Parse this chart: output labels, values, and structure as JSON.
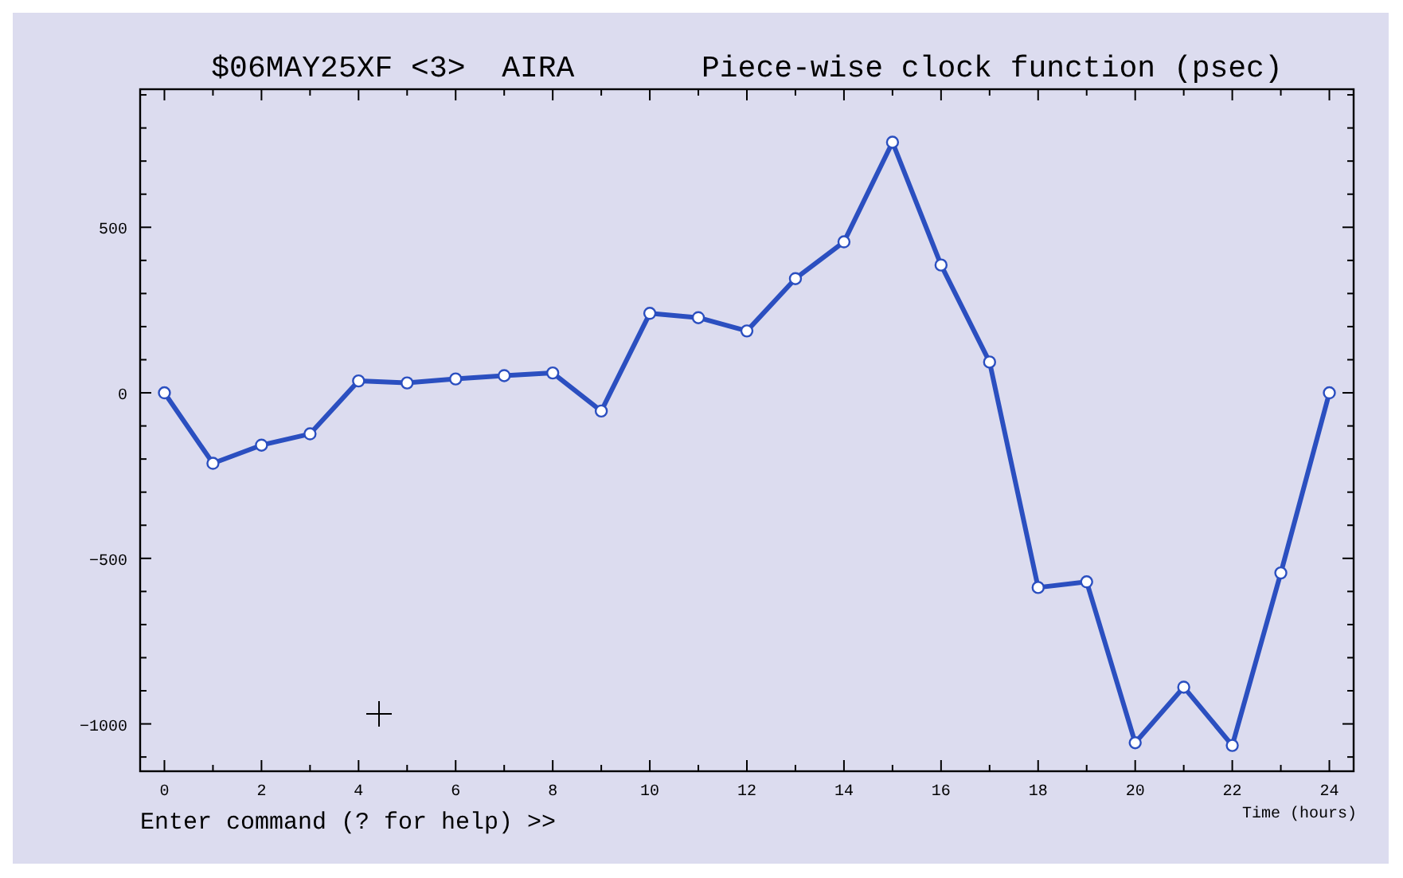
{
  "chart_data": {
    "type": "line",
    "title": "$06MAY25XF <3>  AIRA       Piece-wise clock function (psec)",
    "xlabel": "Time (hours)",
    "annotations": [
      "Enter command (? for help) >>"
    ],
    "x": [
      0,
      1,
      2,
      3,
      4,
      5,
      6,
      7,
      8,
      9,
      10,
      11,
      12,
      13,
      14,
      15,
      16,
      17,
      18,
      19,
      20,
      21,
      22,
      23,
      24
    ],
    "series": [
      {
        "color": "#2b4fc0",
        "values": [
          0,
          -213,
          -158,
          -124,
          36,
          30,
          42,
          52,
          60,
          -55,
          240,
          227,
          187,
          345,
          456,
          757,
          386,
          93,
          -588,
          -571,
          -1057,
          -889,
          -1065,
          -544,
          0
        ]
      }
    ],
    "xlim": [
      -0.5,
      24.5
    ],
    "ylim": [
      -1143,
      917
    ],
    "xticks": [
      0,
      {
        "value": 1,
        "label": null
      },
      2,
      {
        "value": 3,
        "label": null
      },
      4,
      {
        "value": 5,
        "label": null
      },
      6,
      {
        "value": 7,
        "label": null
      },
      8,
      {
        "value": 9,
        "label": null
      },
      10,
      {
        "value": 11,
        "label": null
      },
      12,
      {
        "value": 13,
        "label": null
      },
      14,
      {
        "value": 15,
        "label": null
      },
      16,
      {
        "value": 17,
        "label": null
      },
      18,
      {
        "value": 19,
        "label": null
      },
      20,
      {
        "value": 21,
        "label": null
      },
      22,
      {
        "value": 23,
        "label": null
      },
      24
    ],
    "yticks": [
      {
        "value": -1100,
        "label": null
      },
      {
        "value": -1000,
        "label": "−1000"
      },
      {
        "value": -900,
        "label": null
      },
      {
        "value": -800,
        "label": null
      },
      {
        "value": -700,
        "label": null
      },
      {
        "value": -600,
        "label": null
      },
      {
        "value": -500,
        "label": "−500"
      },
      {
        "value": -400,
        "label": null
      },
      {
        "value": -300,
        "label": null
      },
      {
        "value": -200,
        "label": null
      },
      {
        "value": -100,
        "label": null
      },
      0,
      {
        "value": 100,
        "label": null
      },
      {
        "value": 200,
        "label": null
      },
      {
        "value": 300,
        "label": null
      },
      {
        "value": 400,
        "label": null
      },
      500,
      {
        "value": 600,
        "label": null
      },
      {
        "value": 700,
        "label": null
      },
      {
        "value": 800,
        "label": null
      },
      {
        "value": 900,
        "label": null
      }
    ],
    "grid": false,
    "marker": "circle",
    "line_style": "solid"
  }
}
